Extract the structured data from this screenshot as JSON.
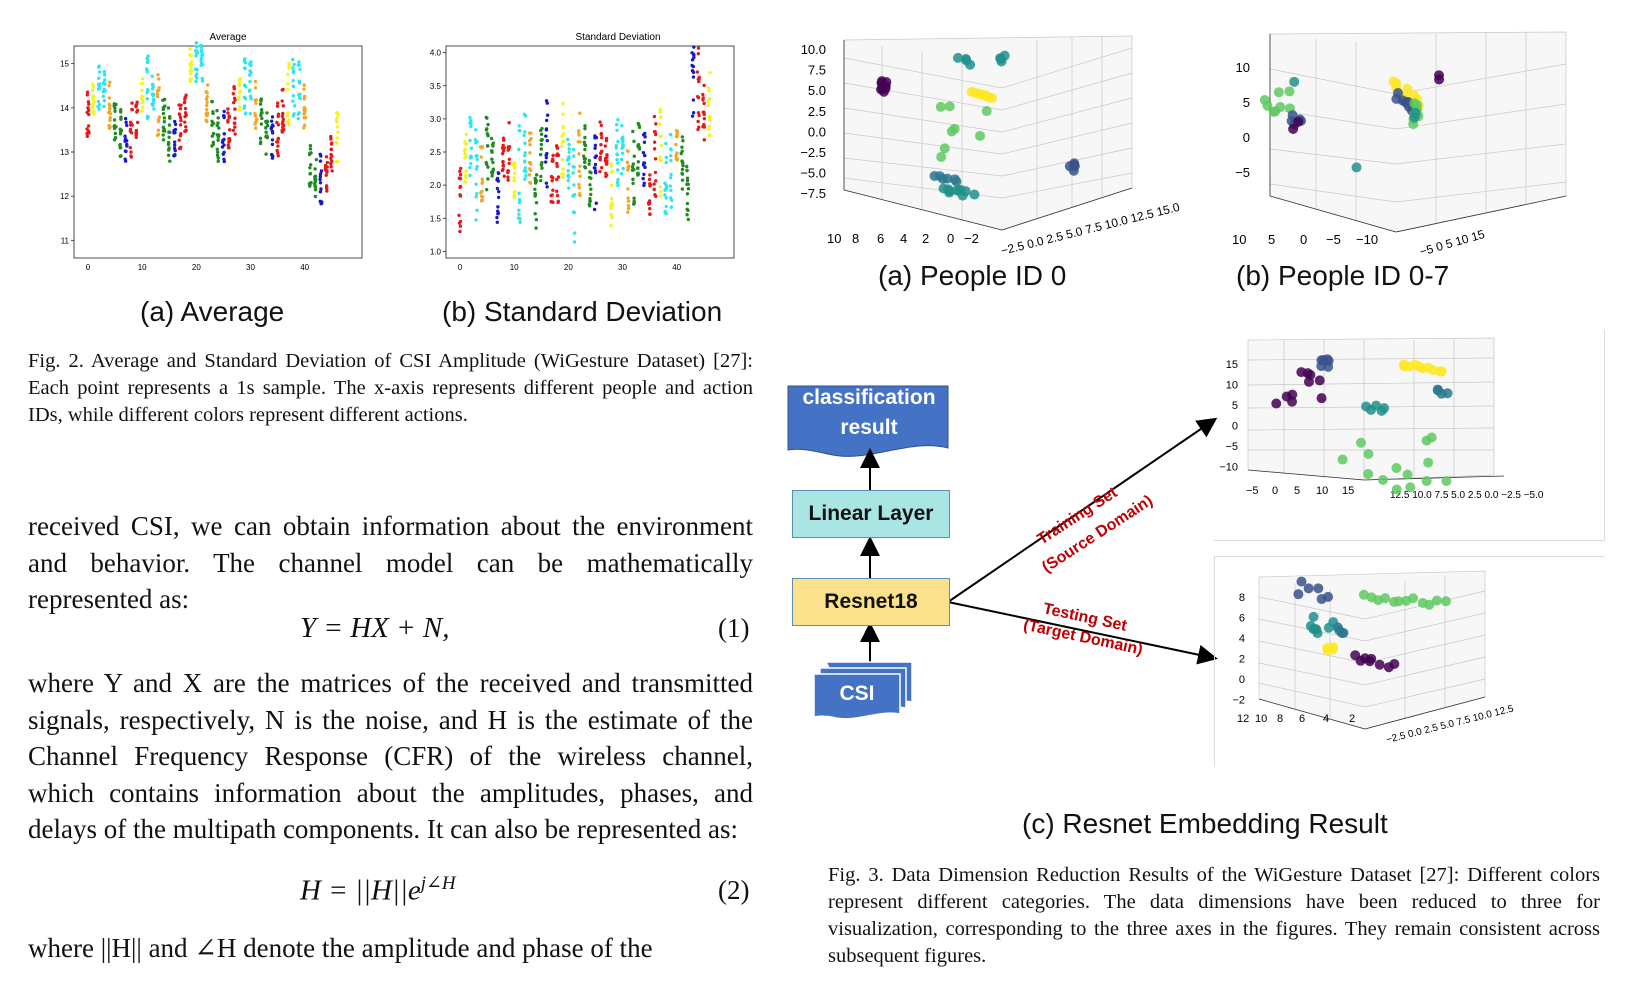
{
  "fig2": {
    "panels": [
      {
        "title": "Average",
        "subcaption": "(a) Average",
        "yticks": [
          "15",
          "14",
          "13",
          "12",
          "11"
        ],
        "xticks": [
          "0",
          "10",
          "20",
          "30",
          "40"
        ]
      },
      {
        "title": "Standard Deviation",
        "subcaption": "(b) Standard Deviation",
        "yticks": [
          "4.0",
          "3.5",
          "3.0",
          "2.5",
          "2.0",
          "1.5",
          "1.0"
        ],
        "xticks": [
          "0",
          "10",
          "20",
          "30",
          "40"
        ]
      }
    ],
    "caption": "Fig. 2.  Average and Standard Deviation of CSI Amplitude (WiGesture Dataset) [27]: Each point represents a 1s sample. The x-axis represents different people and action IDs, while different colors represent different actions."
  },
  "body": {
    "para1": "received CSI, we can obtain information about the environment and behavior. The channel model can be mathematically represented as:",
    "eq1": "Y = HX + N,",
    "eq1_num": "(1)",
    "para2": "where Y and X are the matrices of the received and transmitted signals, respectively, N is the noise, and H is the estimate of the Channel Frequency Response (CFR) of the wireless channel, which contains information about the amplitudes, phases, and delays of the multipath components. It can also be represented as:",
    "eq2_base": "H = ||H||e",
    "eq2_sup": "j∠H",
    "eq2_num": "(2)",
    "para3": "where ||H|| and ∠H denote the amplitude and phase of the"
  },
  "fig3": {
    "panel_a": {
      "subcaption": "(a) People ID 0",
      "zticks": [
        "10.0",
        "7.5",
        "5.0",
        "2.5",
        "0.0",
        "−2.5",
        "−5.0",
        "−7.5"
      ],
      "xticks": [
        "10",
        "8",
        "6",
        "4",
        "2",
        "0",
        "−2"
      ],
      "yticks": "−2.5 0.0 2.5 5.0 7.5 10.0 12.5 15.0"
    },
    "panel_b": {
      "subcaption": "(b) People ID 0-7",
      "zticks": [
        "10",
        "5",
        "0",
        "−5"
      ],
      "xticks": [
        "10",
        "5",
        "0",
        "−5",
        "−10"
      ],
      "yticks": "−5 0 5 10 15"
    },
    "diagram": {
      "output": "classification result",
      "linear": "Linear Layer",
      "resnet": "Resnet18",
      "input": "CSI",
      "train_label1": "Training Set",
      "train_label2": "(Source Domain)",
      "test_label1": "Testing Set",
      "test_label2": "(Target Domain)"
    },
    "embed_top": {
      "zticks": [
        "15",
        "10",
        "5",
        "0",
        "−5",
        "−10"
      ],
      "xticks": "−5 0 5 10 15",
      "yticks": "12.5 10.0 7.5 5.0 2.5 0.0 −2.5 −5.0"
    },
    "embed_bottom": {
      "zticks": [
        "8",
        "6",
        "4",
        "2",
        "0",
        "−2"
      ],
      "xticks": "12 10 8 6 4 2",
      "yticks": "−2.5 0.0 2.5 5.0 7.5 10.0 12.5"
    },
    "subcaption_c": "(c) Resnet Embedding Result",
    "caption": "Fig. 3.  Data Dimension Reduction Results of the WiGesture Dataset [27]: Different colors represent different categories. The data dimensions have been reduced to three for visualization, corresponding to the three axes in the figures. They remain consistent across subsequent figures."
  },
  "colors": {
    "red": "#e41a1c",
    "blue": "#1a1acd",
    "green": "#1e8c1e",
    "orange": "#f5a623",
    "cyan": "#2ee6f0",
    "yellow": "#f5f51e",
    "flow_blue": "#4472c4",
    "linear_fill": "#a9e5e3",
    "resnet_fill": "#fbe28a",
    "label_red": "#c00000"
  }
}
